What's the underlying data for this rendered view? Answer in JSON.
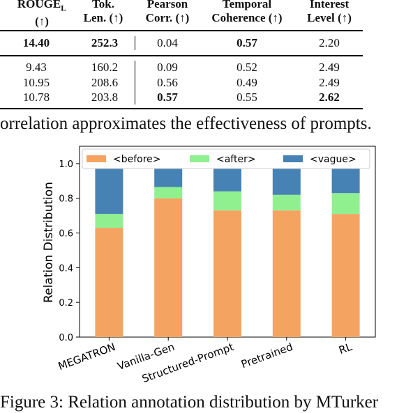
{
  "table": {
    "headers": [
      {
        "line1": "ROUGE",
        "sub": "L",
        "line2": "(↑)"
      },
      {
        "line1": "Tok.",
        "line2": "Len. (↑)"
      },
      {
        "line1": "Pearson",
        "line2": "Corr. (↑)"
      },
      {
        "line1": "Temporal",
        "line2": "Coherence (↑)"
      },
      {
        "line1": "Interest",
        "line2": "Level (↑)"
      }
    ],
    "rows": [
      [
        "14.40",
        "252.3",
        "0.04",
        "0.57",
        "2.20"
      ],
      [
        "9.43",
        "160.2",
        "0.09",
        "0.52",
        "2.49"
      ],
      [
        "10.95",
        "208.6",
        "0.56",
        "0.49",
        "2.49"
      ],
      [
        "10.78",
        "203.8",
        "0.57",
        "0.55",
        "2.62"
      ]
    ],
    "bold": [
      [
        true,
        true,
        false,
        true,
        false
      ],
      [
        false,
        false,
        false,
        false,
        false
      ],
      [
        false,
        false,
        false,
        false,
        false
      ],
      [
        false,
        false,
        true,
        false,
        true
      ]
    ],
    "caption": "orrelation approximates the effectiveness of prompts."
  },
  "chart_data": {
    "type": "bar",
    "stacked": true,
    "categories": [
      "MEGATRON",
      "Vanilla-Gen",
      "Structured-Prompt",
      "Pretrained",
      "RL"
    ],
    "series": [
      {
        "name": "<before>",
        "color": "#f4a460",
        "values": [
          0.63,
          0.8,
          0.73,
          0.73,
          0.71
        ]
      },
      {
        "name": "<after>",
        "color": "#90f090",
        "values": [
          0.08,
          0.065,
          0.11,
          0.09,
          0.12
        ]
      },
      {
        "name": "<vague>",
        "color": "#4682b4",
        "values": [
          0.29,
          0.135,
          0.16,
          0.18,
          0.17
        ]
      }
    ],
    "ylabel": "Relation Distribution",
    "xlabel": "",
    "ylim": [
      0,
      1.0
    ],
    "yticks": [
      "0.0",
      "0.2",
      "0.4",
      "0.6",
      "0.8",
      "1.0"
    ],
    "legend": "top"
  },
  "caption_bottom": "Figure 3: Relation annotation distribution by MTurker"
}
